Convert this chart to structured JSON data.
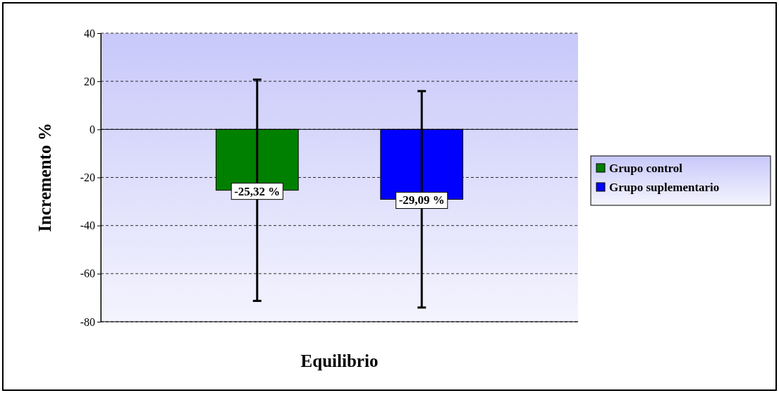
{
  "chart_data": {
    "type": "bar",
    "ylabel": "Incremento %",
    "xlabel": "Equilibrio",
    "categories": [
      null
    ],
    "series": [
      {
        "name": "Grupo control",
        "color": "#008000",
        "values": [
          -25.32
        ],
        "errors": [
          46
        ],
        "value_labels": [
          "-25,32 %"
        ]
      },
      {
        "name": "Grupo suplementario",
        "color": "#0000ff",
        "values": [
          -29.09
        ],
        "errors": [
          45
        ],
        "value_labels": [
          "-29,09 %"
        ]
      }
    ],
    "ylim": [
      -80,
      40
    ],
    "yticks": [
      -80,
      -60,
      -40,
      -20,
      0,
      20,
      40
    ],
    "grid": "y",
    "legend": "right"
  }
}
